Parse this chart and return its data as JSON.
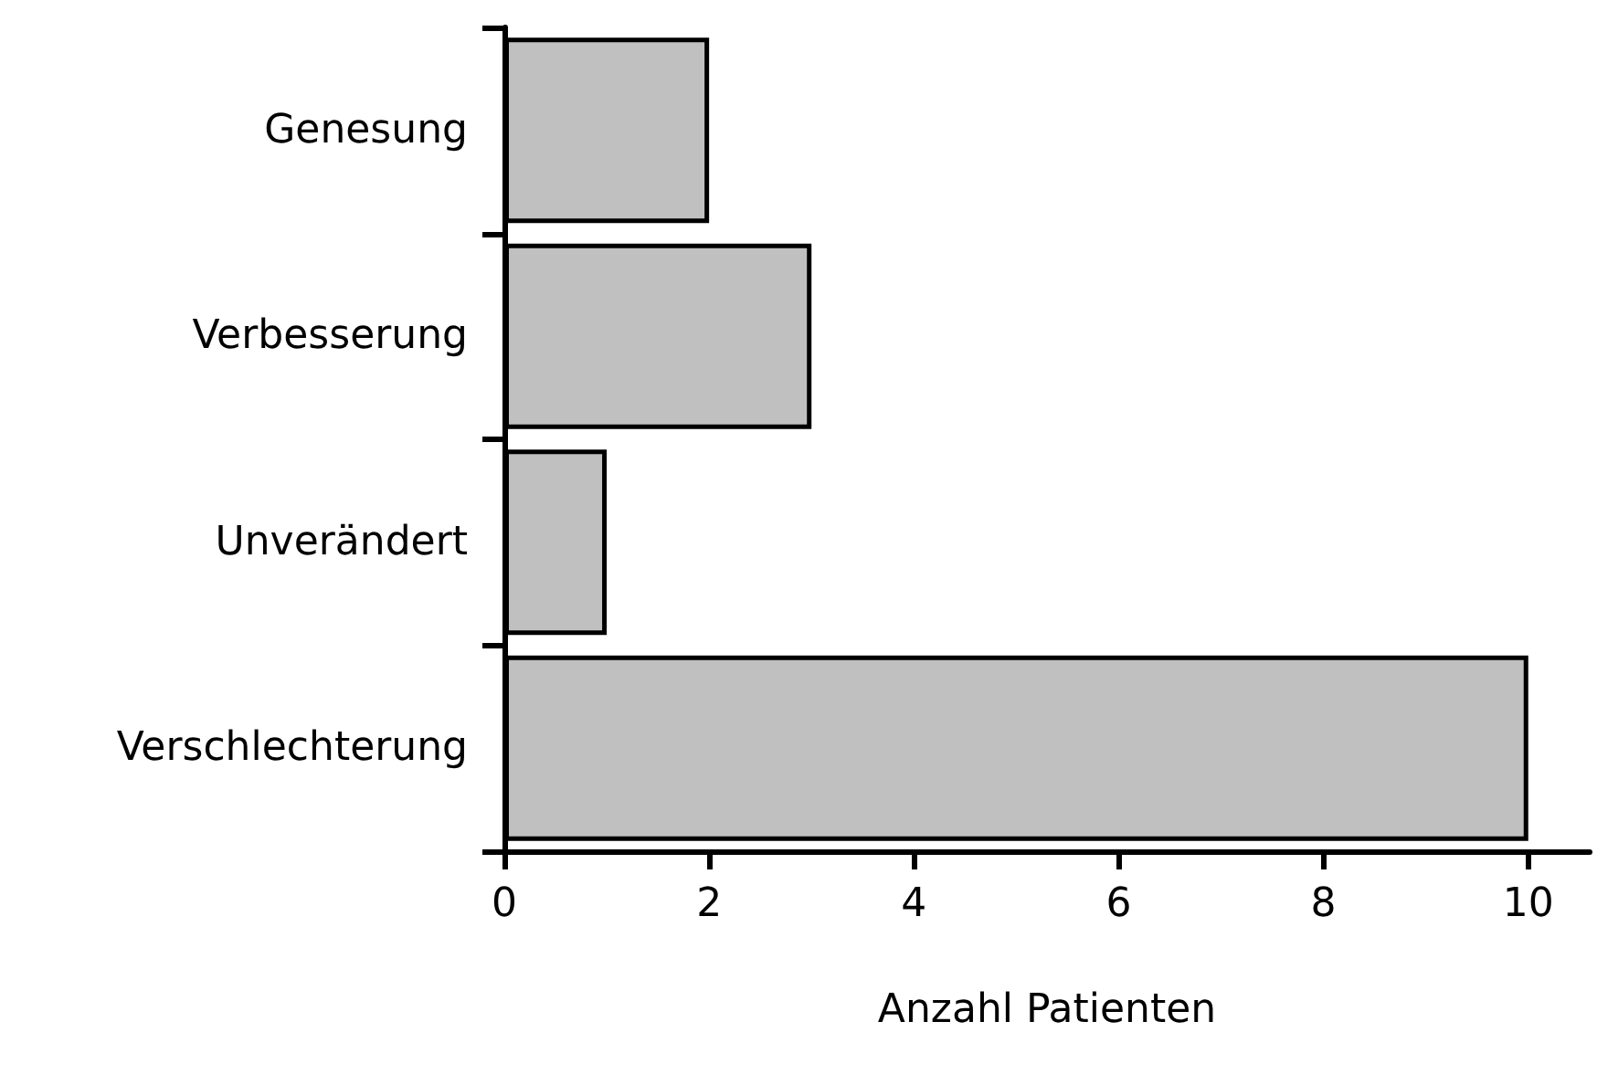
{
  "chart_data": {
    "type": "bar",
    "orientation": "horizontal",
    "xlabel": "Anzahl Patienten",
    "categories": [
      "Genesung",
      "Verbesserung",
      "Unverändert",
      "Verschlechterung"
    ],
    "values": [
      2,
      3,
      1,
      10
    ],
    "color": "#c0c0c0",
    "xlim": [
      0,
      10.6
    ],
    "xticks": [
      0,
      2,
      4,
      6,
      8,
      10
    ],
    "grid": false
  }
}
